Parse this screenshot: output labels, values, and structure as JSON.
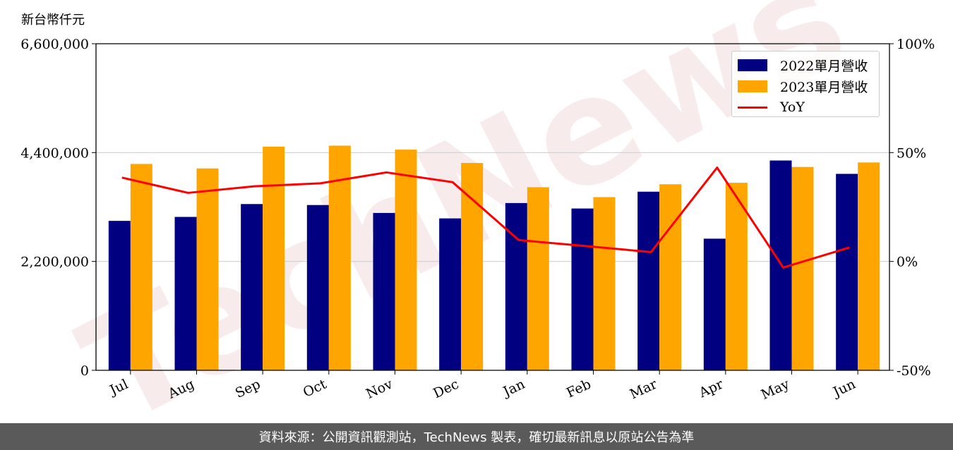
{
  "chart_data": {
    "type": "bar",
    "title": "",
    "y_unit_label": "新台幣仟元",
    "categories": [
      "Jul",
      "Aug",
      "Sep",
      "Oct",
      "Nov",
      "Dec",
      "Jan",
      "Feb",
      "Mar",
      "Apr",
      "May",
      "Jun"
    ],
    "series": [
      {
        "name": "2022單月營收",
        "type": "bar",
        "axis": "left",
        "color": "#000080",
        "values": [
          3020000,
          3100000,
          3360000,
          3340000,
          3180000,
          3070000,
          3380000,
          3270000,
          3610000,
          2660000,
          4240000,
          3970000
        ]
      },
      {
        "name": "2023單月營收",
        "type": "bar",
        "axis": "left",
        "color": "#FFA500",
        "values": [
          4170000,
          4080000,
          4520000,
          4540000,
          4460000,
          4190000,
          3700000,
          3500000,
          3760000,
          3790000,
          4110000,
          4200000
        ]
      },
      {
        "name": "YoY",
        "type": "line",
        "axis": "right",
        "color": "#FF0000",
        "values": [
          38.5,
          31.5,
          34.5,
          35.9,
          40.9,
          36.4,
          9.8,
          7.1,
          4.3,
          43.1,
          -2.8,
          6.4
        ]
      }
    ],
    "y_left": {
      "min": 0,
      "max": 6600000,
      "ticks": [
        0,
        2200000,
        4400000,
        6600000
      ],
      "tick_labels": [
        "0",
        "2,200,000",
        "4,400,000",
        "6,600,000"
      ]
    },
    "y_right": {
      "min": -50,
      "max": 100,
      "ticks": [
        -50,
        0,
        50,
        100
      ],
      "tick_labels": [
        "-50%",
        "0%",
        "50%",
        "100%"
      ]
    },
    "grid": "horizontal",
    "legend_position": "top-right"
  },
  "watermark": "TechNews",
  "footer": "資料來源：公開資訊觀測站，TechNews 製表，確切最新訊息以原站公告為準"
}
